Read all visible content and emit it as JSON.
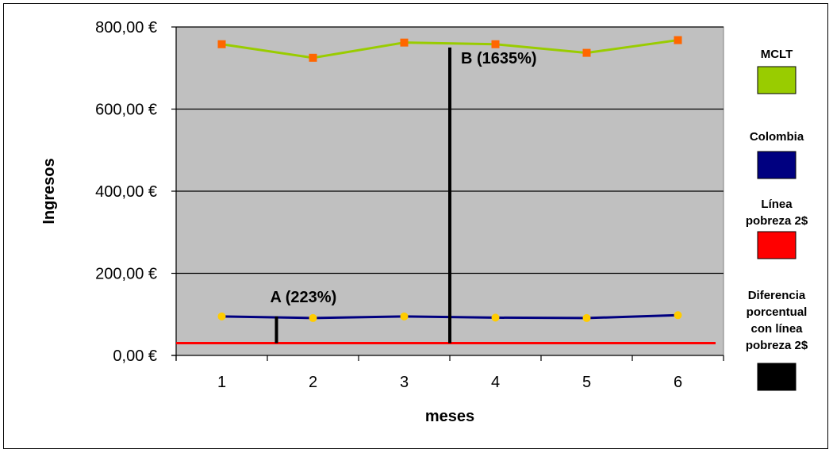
{
  "chart_data": {
    "type": "line",
    "title": "",
    "xlabel": "meses",
    "ylabel": "Ingresos",
    "categories": [
      "1",
      "2",
      "3",
      "4",
      "5",
      "6"
    ],
    "y_tick_labels": [
      "0,00 €",
      "200,00 €",
      "400,00 €",
      "600,00 €",
      "800,00 €"
    ],
    "ylim": [
      0,
      800
    ],
    "grid": true,
    "legend_position": "right",
    "series": [
      {
        "name": "MCLT",
        "color": "#99CC00",
        "marker_color": "#FF6600",
        "marker": "square",
        "values": [
          758,
          725,
          762,
          758,
          737,
          768
        ]
      },
      {
        "name": "Colombia",
        "color": "#000080",
        "marker_color": "#FFCC00",
        "marker": "circle",
        "values": [
          95,
          91,
          95,
          92,
          91,
          98
        ]
      },
      {
        "name": "Línea pobreza 2$",
        "color": "#FF0000",
        "values": [
          30,
          30,
          30,
          30,
          30,
          30
        ]
      }
    ],
    "legend_extra": [
      {
        "name": "Diferencia porcentual con línea pobreza 2$",
        "color": "#000000"
      }
    ],
    "annotations": [
      {
        "label": "A  (223%)",
        "x": 1.6,
        "y_from": 30,
        "y_to": 95
      },
      {
        "label": "B (1635%)",
        "x": 3.5,
        "y_from": 30,
        "y_to": 750
      }
    ]
  }
}
